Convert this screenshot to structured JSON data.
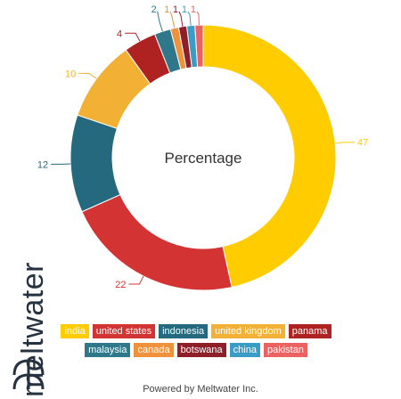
{
  "chart_data": {
    "type": "pie",
    "donut": true,
    "center_label": "Percentage",
    "legend_position": "bottom",
    "slices": [
      {
        "label": "india",
        "value": 47,
        "color": "#FFCC00"
      },
      {
        "label": "united states",
        "value": 22,
        "color": "#D33333"
      },
      {
        "label": "indonesia",
        "value": 12,
        "color": "#24697D"
      },
      {
        "label": "united kingdom",
        "value": 10,
        "color": "#F2B134"
      },
      {
        "label": "panama",
        "value": 4,
        "color": "#AE2321"
      },
      {
        "label": "malaysia",
        "value": 2,
        "color": "#2F788C"
      },
      {
        "label": "canada",
        "value": 1,
        "color": "#F0913B"
      },
      {
        "label": "botswana",
        "value": 1,
        "color": "#8E1F28"
      },
      {
        "label": "china",
        "value": 1,
        "color": "#3A9DC5"
      },
      {
        "label": "pakistan",
        "value": 1,
        "color": "#EC6262"
      }
    ]
  },
  "legend_rows": [
    [
      0,
      1,
      2,
      3,
      4
    ],
    [
      5,
      6,
      7,
      8,
      9
    ]
  ],
  "brand": {
    "name": "meltwater"
  },
  "footer": {
    "text": "Powered by Meltwater Inc."
  }
}
